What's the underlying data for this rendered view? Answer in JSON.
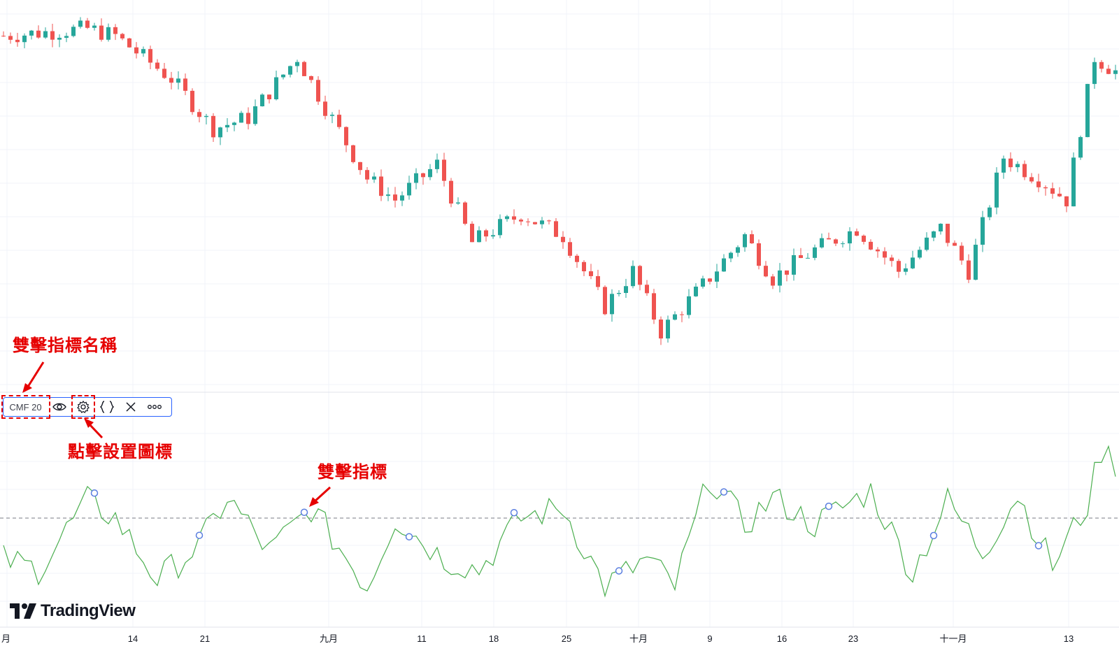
{
  "colors": {
    "up": "#26a69a",
    "down": "#ef5350",
    "cmf_line": "#4caf50",
    "signal_dot": "#5b7fe0",
    "annotation": "#e60000",
    "toolbar_border": "#2962ff"
  },
  "indicator_toolbar": {
    "name": "CMF 20",
    "icons": [
      "eye-icon",
      "gear-icon",
      "braces-icon",
      "close-icon",
      "more-icon"
    ]
  },
  "annotations": {
    "double_click_name": "雙擊指標名稱",
    "click_settings_icon": "點擊設置圖標",
    "double_click_indicator": "雙擊指標"
  },
  "logo": {
    "text": "TradingView"
  },
  "chart_data": {
    "type": "candlestick",
    "x_ticks": [
      "月",
      "14",
      "21",
      "九月",
      "11",
      "18",
      "25",
      "十月",
      "9",
      "16",
      "23",
      "十一月",
      "13"
    ],
    "price_close_trend": [
      {
        "i": 0,
        "v": 88
      },
      {
        "i": 12,
        "v": 90
      },
      {
        "i": 16,
        "v": 88
      },
      {
        "i": 24,
        "v": 76
      },
      {
        "i": 30,
        "v": 62
      },
      {
        "i": 35,
        "v": 65
      },
      {
        "i": 42,
        "v": 82
      },
      {
        "i": 46,
        "v": 68
      },
      {
        "i": 52,
        "v": 48
      },
      {
        "i": 56,
        "v": 42
      },
      {
        "i": 62,
        "v": 52
      },
      {
        "i": 67,
        "v": 30
      },
      {
        "i": 74,
        "v": 38
      },
      {
        "i": 80,
        "v": 32
      },
      {
        "i": 86,
        "v": 12
      },
      {
        "i": 90,
        "v": 22
      },
      {
        "i": 94,
        "v": 5
      },
      {
        "i": 100,
        "v": 18
      },
      {
        "i": 106,
        "v": 32
      },
      {
        "i": 110,
        "v": 20
      },
      {
        "i": 116,
        "v": 28
      },
      {
        "i": 122,
        "v": 34
      },
      {
        "i": 128,
        "v": 22
      },
      {
        "i": 134,
        "v": 34
      },
      {
        "i": 138,
        "v": 22
      },
      {
        "i": 143,
        "v": 54
      },
      {
        "i": 148,
        "v": 48
      },
      {
        "i": 152,
        "v": 42
      },
      {
        "i": 156,
        "v": 82
      },
      {
        "i": 159,
        "v": 78
      }
    ],
    "cmf_zero_line": 0,
    "cmf_trend": [
      {
        "i": 0,
        "v": -0.12
      },
      {
        "i": 5,
        "v": -0.15
      },
      {
        "i": 12,
        "v": 0.05
      },
      {
        "i": 16,
        "v": 0.0
      },
      {
        "i": 22,
        "v": -0.18
      },
      {
        "i": 28,
        "v": -0.08
      },
      {
        "i": 32,
        "v": 0.06
      },
      {
        "i": 38,
        "v": -0.1
      },
      {
        "i": 44,
        "v": 0.03
      },
      {
        "i": 52,
        "v": -0.2
      },
      {
        "i": 56,
        "v": 0.0
      },
      {
        "i": 63,
        "v": -0.12
      },
      {
        "i": 68,
        "v": -0.15
      },
      {
        "i": 74,
        "v": 0.0
      },
      {
        "i": 80,
        "v": 0.03
      },
      {
        "i": 86,
        "v": -0.2
      },
      {
        "i": 92,
        "v": -0.12
      },
      {
        "i": 96,
        "v": -0.2
      },
      {
        "i": 101,
        "v": 0.12
      },
      {
        "i": 106,
        "v": -0.02
      },
      {
        "i": 110,
        "v": 0.06
      },
      {
        "i": 116,
        "v": -0.02
      },
      {
        "i": 119,
        "v": 0.02
      },
      {
        "i": 124,
        "v": 0.08
      },
      {
        "i": 130,
        "v": -0.16
      },
      {
        "i": 135,
        "v": 0.05
      },
      {
        "i": 140,
        "v": -0.1
      },
      {
        "i": 145,
        "v": 0.07
      },
      {
        "i": 150,
        "v": -0.14
      },
      {
        "i": 155,
        "v": 0.04
      },
      {
        "i": 157,
        "v": 0.2
      },
      {
        "i": 159,
        "v": 0.16
      }
    ],
    "signal_points": [
      13,
      28,
      43,
      58,
      73,
      88,
      103,
      118,
      133,
      148
    ],
    "candle_count": 160
  }
}
